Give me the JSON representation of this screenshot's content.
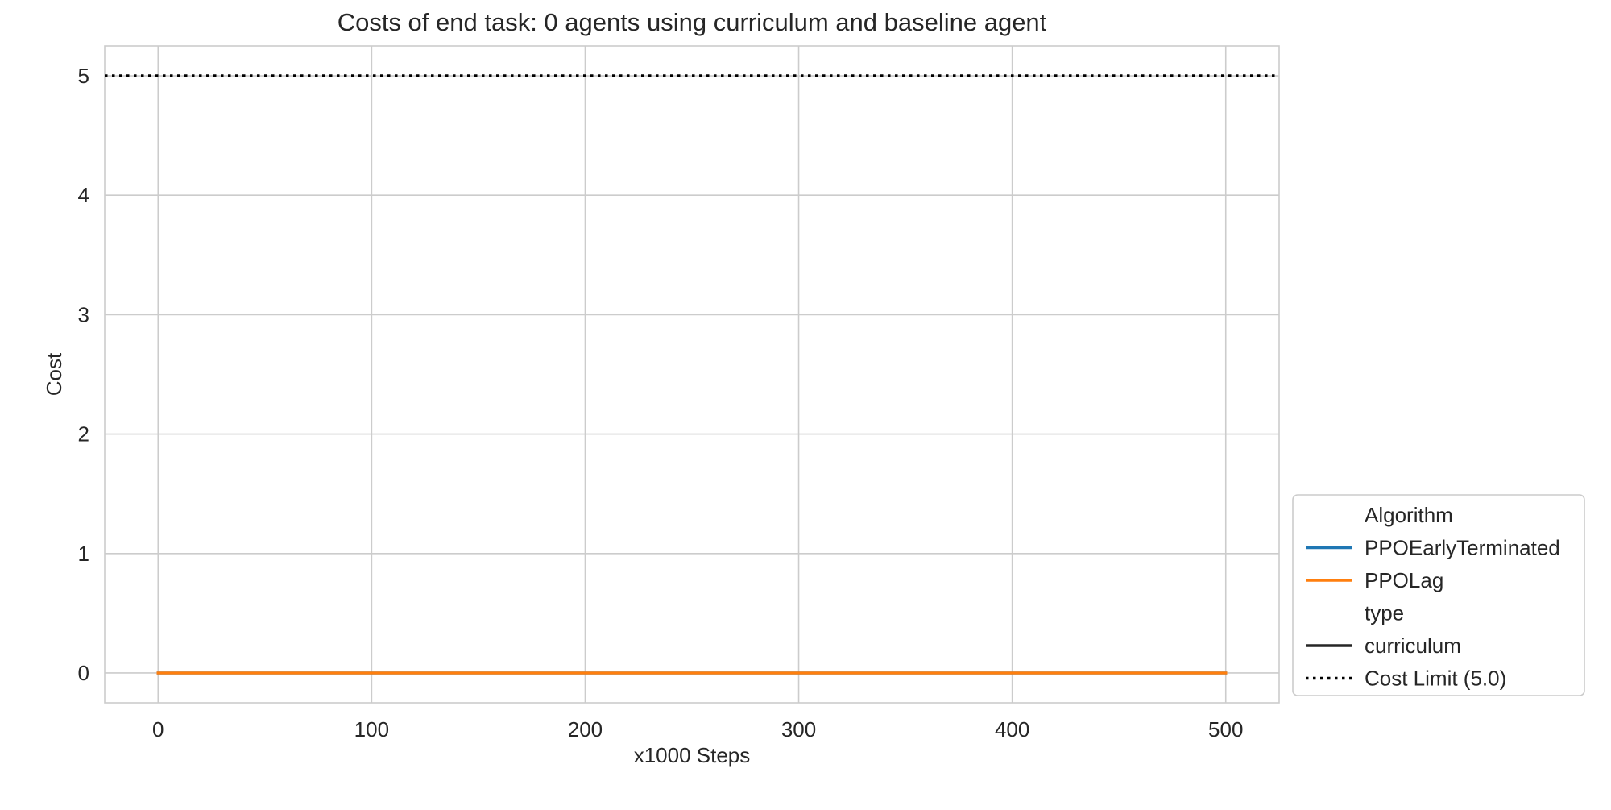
{
  "chart_data": {
    "type": "line",
    "title": "Costs of end task: 0 agents using curriculum and baseline agent",
    "xlabel": "x1000 Steps",
    "ylabel": "Cost",
    "xlim": [
      -25,
      525
    ],
    "ylim": [
      -0.25,
      5.25
    ],
    "xticks": [
      0,
      100,
      200,
      300,
      400,
      500
    ],
    "yticks": [
      0,
      1,
      2,
      3,
      4,
      5
    ],
    "grid": true,
    "series": [
      {
        "name": "PPOEarlyTerminated",
        "type": "curriculum",
        "color": "#1f77b4",
        "x": [
          0,
          500
        ],
        "y": [
          0,
          0
        ]
      },
      {
        "name": "PPOLag",
        "type": "curriculum",
        "color": "#ff7f0e",
        "x": [
          0,
          500
        ],
        "y": [
          0,
          0
        ]
      }
    ],
    "reference_lines": [
      {
        "name": "Cost Limit (5.0)",
        "y": 5.0,
        "style": "dotted",
        "color": "#000000"
      }
    ],
    "legend": {
      "placement": "outside-right-bottom",
      "entries": [
        {
          "label": "Algorithm",
          "kind": "header"
        },
        {
          "label": "PPOEarlyTerminated",
          "kind": "solid",
          "color": "#1f77b4"
        },
        {
          "label": "PPOLag",
          "kind": "solid",
          "color": "#ff7f0e"
        },
        {
          "label": "type",
          "kind": "header"
        },
        {
          "label": "curriculum",
          "kind": "solid",
          "color": "#262626"
        },
        {
          "label": "Cost Limit (5.0)",
          "kind": "dotted",
          "color": "#000000"
        }
      ]
    }
  }
}
